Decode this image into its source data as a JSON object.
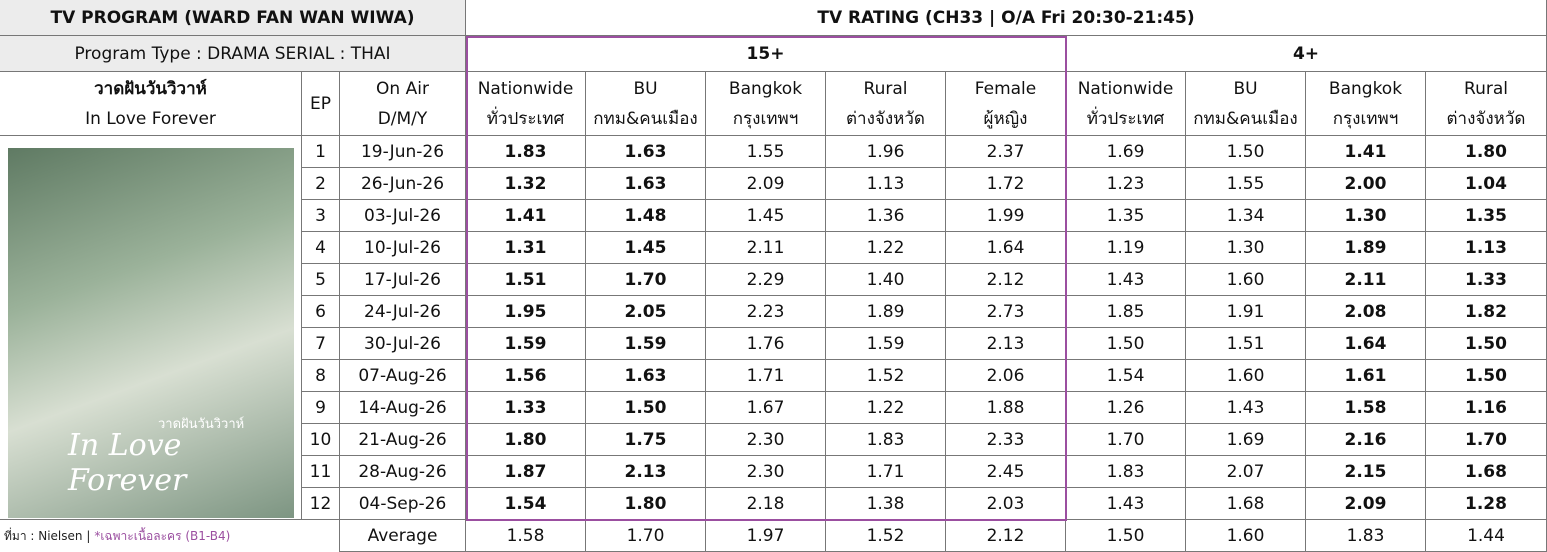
{
  "header": {
    "title": "TV PROGRAM (WARD FAN WAN WIWA)",
    "program_type": "Program Type : DRAMA SERIAL : THAI",
    "rating_title": "TV RATING (CH33 | O/A Fri 20:30-21:45)",
    "groups": [
      "15+",
      "4+"
    ],
    "program_thai": "วาดฝันวันวิวาห์",
    "program_en": "In Love Forever",
    "ep": "EP",
    "on_air": [
      "On Air",
      "D/M/Y"
    ],
    "columns": [
      [
        "Nationwide",
        "ทั่วประเทศ"
      ],
      [
        "BU",
        "กทม&คนเมือง"
      ],
      [
        "Bangkok",
        "กรุงเทพฯ"
      ],
      [
        "Rural",
        "ต่างจังหวัด"
      ],
      [
        "Female",
        "ผู้หญิง"
      ],
      [
        "Nationwide",
        "ทั่วประเทศ"
      ],
      [
        "BU",
        "กทม&คนเมือง"
      ],
      [
        "Bangkok",
        "กรุงเทพฯ"
      ],
      [
        "Rural",
        "ต่างจังหวัด"
      ]
    ]
  },
  "table": {
    "rows": [
      [
        "1",
        "19-Jun-26",
        "1.83",
        "1.63",
        "1.55",
        "1.96",
        "2.37",
        "1.69",
        "1.50",
        "1.41",
        "1.80"
      ],
      [
        "2",
        "26-Jun-26",
        "1.32",
        "1.63",
        "2.09",
        "1.13",
        "1.72",
        "1.23",
        "1.55",
        "2.00",
        "1.04"
      ],
      [
        "3",
        "03-Jul-26",
        "1.41",
        "1.48",
        "1.45",
        "1.36",
        "1.99",
        "1.35",
        "1.34",
        "1.30",
        "1.35"
      ],
      [
        "4",
        "10-Jul-26",
        "1.31",
        "1.45",
        "2.11",
        "1.22",
        "1.64",
        "1.19",
        "1.30",
        "1.89",
        "1.13"
      ],
      [
        "5",
        "17-Jul-26",
        "1.51",
        "1.70",
        "2.29",
        "1.40",
        "2.12",
        "1.43",
        "1.60",
        "2.11",
        "1.33"
      ],
      [
        "6",
        "24-Jul-26",
        "1.95",
        "2.05",
        "2.23",
        "1.89",
        "2.73",
        "1.85",
        "1.91",
        "2.08",
        "1.82"
      ],
      [
        "7",
        "30-Jul-26",
        "1.59",
        "1.59",
        "1.76",
        "1.59",
        "2.13",
        "1.50",
        "1.51",
        "1.64",
        "1.50"
      ],
      [
        "8",
        "07-Aug-26",
        "1.56",
        "1.63",
        "1.71",
        "1.52",
        "2.06",
        "1.54",
        "1.60",
        "1.61",
        "1.50"
      ],
      [
        "9",
        "14-Aug-26",
        "1.33",
        "1.50",
        "1.67",
        "1.22",
        "1.88",
        "1.26",
        "1.43",
        "1.58",
        "1.16"
      ],
      [
        "10",
        "21-Aug-26",
        "1.80",
        "1.75",
        "2.30",
        "1.83",
        "2.33",
        "1.70",
        "1.69",
        "2.16",
        "1.70"
      ],
      [
        "11",
        "28-Aug-26",
        "1.87",
        "2.13",
        "2.30",
        "1.71",
        "2.45",
        "1.83",
        "2.07",
        "2.15",
        "1.68"
      ],
      [
        "12",
        "04-Sep-26",
        "1.54",
        "1.80",
        "2.18",
        "1.38",
        "2.03",
        "1.43",
        "1.68",
        "2.09",
        "1.28"
      ]
    ],
    "average": [
      "Average",
      "1.58",
      "1.70",
      "1.97",
      "1.52",
      "2.12",
      "1.50",
      "1.60",
      "1.83",
      "1.44"
    ]
  },
  "poster": {
    "title": "In Love Forever",
    "thai": "วาดฝันวันวิวาห์"
  },
  "footnote": {
    "source": "ที่มา : Nielsen |",
    "note": "*เฉพาะเนื้อละคร (B1-B4)"
  }
}
